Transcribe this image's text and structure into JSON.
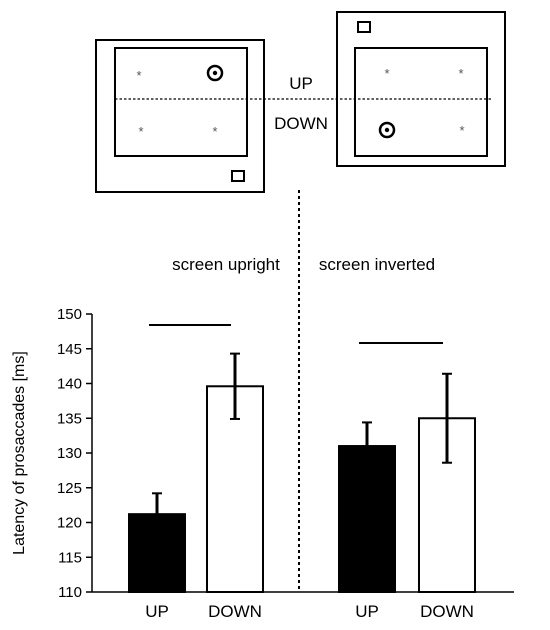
{
  "diagram": {
    "up_label": "UP",
    "down_label": "DOWN",
    "star_glyph": "*"
  },
  "chart_data": {
    "type": "bar",
    "ylabel": "Latency of prosaccades [ms]",
    "ylim": [
      110,
      150
    ],
    "yticks": [
      110,
      115,
      120,
      125,
      130,
      135,
      140,
      145,
      150
    ],
    "panels": [
      {
        "title": "screen upright",
        "categories": [
          "UP",
          "DOWN"
        ],
        "values": [
          121.2,
          139.6
        ],
        "errors": [
          3.0,
          4.7
        ],
        "fills": [
          "#000000",
          "#ffffff"
        ],
        "significance_bar": true
      },
      {
        "title": "screen inverted",
        "categories": [
          "UP",
          "DOWN"
        ],
        "values": [
          131.0,
          135.0
        ],
        "errors": [
          3.4,
          6.4
        ],
        "fills": [
          "#000000",
          "#ffffff"
        ],
        "significance_bar": true
      }
    ]
  }
}
